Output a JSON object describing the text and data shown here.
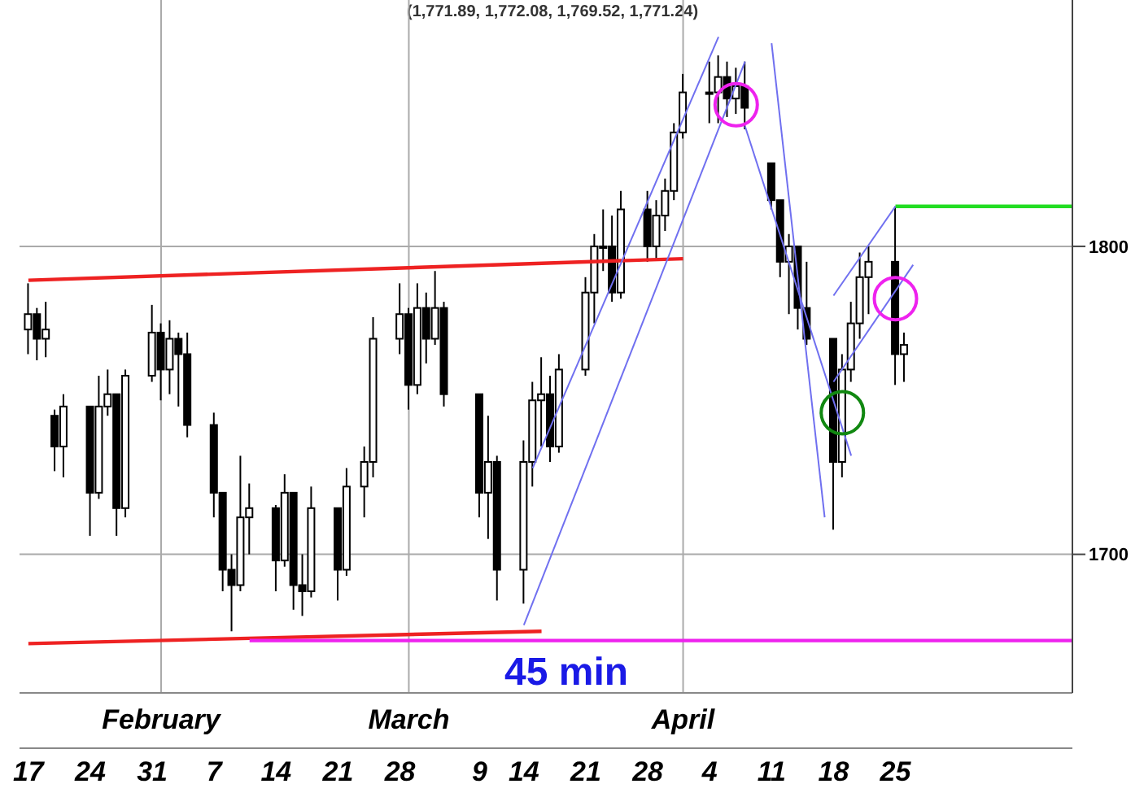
{
  "chart_data": {
    "type": "candlestick",
    "title": "(1,771.89, 1,772.08, 1,769.52, 1,771.24)",
    "annotations": [
      "45 min"
    ],
    "x": [
      "--01-17",
      "--01-18",
      "--01-19",
      "--01-20",
      "--01-21",
      "--01-24",
      "--01-25",
      "--01-26",
      "--01-27",
      "--01-28",
      "--01-31",
      "--02-01",
      "--02-02",
      "--02-03",
      "--02-04",
      "--02-07",
      "--02-08",
      "--02-09",
      "--02-10",
      "--02-11",
      "--02-14",
      "--02-15",
      "--02-16",
      "--02-17",
      "--02-18",
      "--02-21",
      "--02-22",
      "--02-24",
      "--02-25",
      "--02-28",
      "--03-01",
      "--03-02",
      "--03-03",
      "--03-04",
      "--03-05",
      "--03-09",
      "--03-10",
      "--03-11",
      "--03-14",
      "--03-15",
      "--03-16",
      "--03-17",
      "--03-18",
      "--03-21",
      "--03-22",
      "--03-23",
      "--03-24",
      "--03-25",
      "--03-28",
      "--03-29",
      "--03-30",
      "--03-31",
      "--04-01",
      "--04-04",
      "--04-05",
      "--04-06",
      "--04-07",
      "--04-08",
      "--04-11",
      "--04-12",
      "--04-13",
      "--04-14",
      "--04-15",
      "--04-18",
      "--04-19",
      "--04-20",
      "--04-21",
      "--04-22",
      "--04-25",
      "--04-26"
    ],
    "ohlc": [
      [
        1773,
        1788,
        1765,
        1778
      ],
      [
        1778,
        1780,
        1763,
        1770
      ],
      [
        1770,
        1782,
        1764,
        1773
      ],
      [
        1745,
        1747,
        1727,
        1735
      ],
      [
        1735,
        1752,
        1725,
        1748
      ],
      [
        1748,
        1748,
        1706,
        1720
      ],
      [
        1720,
        1758,
        1718,
        1748
      ],
      [
        1748,
        1760,
        1745,
        1752
      ],
      [
        1752,
        1752,
        1706,
        1715
      ],
      [
        1715,
        1760,
        1712,
        1758
      ],
      [
        1758,
        1781,
        1756,
        1772
      ],
      [
        1772,
        1775,
        1750,
        1760
      ],
      [
        1760,
        1776,
        1752,
        1770
      ],
      [
        1770,
        1772,
        1748,
        1765
      ],
      [
        1765,
        1772,
        1738,
        1742
      ],
      [
        1742,
        1746,
        1712,
        1720
      ],
      [
        1720,
        1720,
        1688,
        1695
      ],
      [
        1695,
        1700,
        1675,
        1690
      ],
      [
        1690,
        1732,
        1688,
        1712
      ],
      [
        1712,
        1723,
        1700,
        1715
      ],
      [
        1715,
        1716,
        1688,
        1698
      ],
      [
        1698,
        1726,
        1696,
        1720
      ],
      [
        1720,
        1720,
        1682,
        1690
      ],
      [
        1690,
        1700,
        1680,
        1688
      ],
      [
        1688,
        1722,
        1686,
        1715
      ],
      [
        1715,
        1715,
        1685,
        1695
      ],
      [
        1695,
        1728,
        1693,
        1722
      ],
      [
        1722,
        1735,
        1712,
        1730
      ],
      [
        1730,
        1777,
        1725,
        1770
      ],
      [
        1770,
        1788,
        1765,
        1778
      ],
      [
        1778,
        1780,
        1747,
        1755
      ],
      [
        1755,
        1788,
        1752,
        1780
      ],
      [
        1780,
        1785,
        1762,
        1770
      ],
      [
        1770,
        1792,
        1768,
        1780
      ],
      [
        1780,
        1782,
        1748,
        1752
      ],
      [
        1752,
        1752,
        1712,
        1720
      ],
      [
        1720,
        1745,
        1705,
        1730
      ],
      [
        1730,
        1732,
        1685,
        1695
      ],
      [
        1695,
        1737,
        1684,
        1730
      ],
      [
        1730,
        1756,
        1722,
        1750
      ],
      [
        1750,
        1764,
        1735,
        1752
      ],
      [
        1752,
        1758,
        1730,
        1735
      ],
      [
        1735,
        1765,
        1733,
        1760
      ],
      [
        1760,
        1790,
        1758,
        1785
      ],
      [
        1785,
        1804,
        1775,
        1800
      ],
      [
        1800,
        1812,
        1792,
        1800
      ],
      [
        1800,
        1810,
        1782,
        1785
      ],
      [
        1785,
        1818,
        1783,
        1812
      ],
      [
        1812,
        1818,
        1795,
        1800
      ],
      [
        1800,
        1815,
        1796,
        1810
      ],
      [
        1810,
        1822,
        1805,
        1818
      ],
      [
        1818,
        1840,
        1815,
        1837
      ],
      [
        1837,
        1856,
        1835,
        1850
      ],
      [
        1850,
        1860,
        1840,
        1850
      ],
      [
        1850,
        1862,
        1840,
        1855
      ],
      [
        1855,
        1860,
        1842,
        1848
      ],
      [
        1848,
        1858,
        1843,
        1852
      ],
      [
        1852,
        1860,
        1838,
        1845
      ],
      [
        1827,
        1827,
        1812,
        1815
      ],
      [
        1815,
        1815,
        1790,
        1795
      ],
      [
        1795,
        1804,
        1778,
        1800
      ],
      [
        1800,
        1800,
        1773,
        1780
      ],
      [
        1780,
        1795,
        1768,
        1770
      ],
      [
        1770,
        1770,
        1708,
        1730
      ],
      [
        1730,
        1765,
        1725,
        1760
      ],
      [
        1760,
        1782,
        1756,
        1775
      ],
      [
        1775,
        1798,
        1770,
        1790
      ],
      [
        1790,
        1800,
        1778,
        1795
      ],
      [
        1795,
        1813,
        1755,
        1765
      ],
      [
        1765,
        1772,
        1756,
        1768
      ]
    ],
    "color": "#000000",
    "series": [
      {
        "type": "line",
        "color": "#ee2222",
        "x": [
          "--01-17",
          "--04-01"
        ],
        "values": [
          1789,
          1796
        ]
      },
      {
        "type": "line",
        "color": "#ee2222",
        "x": [
          "--01-17",
          "--03-16"
        ],
        "values": [
          1671,
          1675
        ]
      },
      {
        "type": "line",
        "color": "#ee22ee",
        "x": [
          "--02-11",
          "--05-15"
        ],
        "values": [
          1672,
          1672
        ]
      },
      {
        "type": "line",
        "color": "#22dd22",
        "x": [
          "--04-25",
          "--05-15"
        ],
        "values": [
          1813,
          1813
        ]
      },
      {
        "type": "line",
        "color": "#7070f0",
        "x": [
          "--03-15",
          "--04-05"
        ],
        "values": [
          1728,
          1868
        ]
      },
      {
        "type": "line",
        "color": "#7070f0",
        "x": [
          "--03-14",
          "--04-08"
        ],
        "values": [
          1677,
          1860
        ]
      },
      {
        "type": "line",
        "color": "#7070f0",
        "x": [
          "--04-11",
          "--04-17"
        ],
        "values": [
          1866,
          1712
        ]
      },
      {
        "type": "line",
        "color": "#7070f0",
        "x": [
          "--04-08",
          "--04-20"
        ],
        "values": [
          1839,
          1732
        ]
      },
      {
        "type": "line",
        "color": "#7070f0",
        "x": [
          "--04-18",
          "--04-25"
        ],
        "values": [
          1784,
          1813
        ]
      },
      {
        "type": "line",
        "color": "#7070f0",
        "x": [
          "--04-18",
          "--04-27"
        ],
        "values": [
          1756,
          1794
        ]
      },
      {
        "type": "scatter",
        "color": "#ee22ee",
        "marker": "circle",
        "x": [
          "--04-07",
          "--04-25"
        ],
        "values": [
          1846,
          1783
        ]
      },
      {
        "type": "scatter",
        "color": "#118811",
        "marker": "circle",
        "x": [
          "--04-19"
        ],
        "values": [
          1746
        ]
      }
    ],
    "xlim": [
      "--01-16",
      "--05-15"
    ],
    "xticks": [
      {
        "value": "--01-17",
        "label": "17"
      },
      {
        "value": "--01-24",
        "label": "24"
      },
      {
        "value": "--01-31",
        "label": "31"
      },
      {
        "value": "--02-07",
        "label": "7"
      },
      {
        "value": "--02-14",
        "label": "14"
      },
      {
        "value": "--02-21",
        "label": "21"
      },
      {
        "value": "--02-28",
        "label": "28"
      },
      {
        "value": "--03-09",
        "label": "9"
      },
      {
        "value": "--03-14",
        "label": "14"
      },
      {
        "value": "--03-21",
        "label": "21"
      },
      {
        "value": "--03-28",
        "label": "28"
      },
      {
        "value": "--04-04",
        "label": "4"
      },
      {
        "value": "--04-11",
        "label": "11"
      },
      {
        "value": "--04-18",
        "label": "18"
      },
      {
        "value": "--04-25",
        "label": "25"
      }
    ],
    "x2lim": [
      "--01-16",
      "--05-15"
    ],
    "x2ticks": [
      {
        "value": "--02-01",
        "label": "February"
      },
      {
        "value": "--03-01",
        "label": "March"
      },
      {
        "value": "--04-01",
        "label": "April"
      }
    ],
    "ylim": [
      1655,
      1880
    ],
    "yticks": [
      1700,
      1800
    ],
    "grid": true
  }
}
